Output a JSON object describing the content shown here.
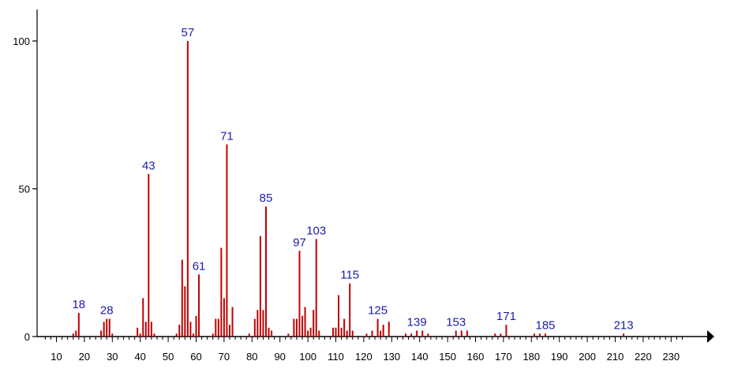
{
  "colors": {
    "bar": "#c00000",
    "peak_label": "#1c1ca8",
    "axis": "#000000"
  },
  "chart_data": {
    "type": "bar",
    "title": "",
    "xlabel": "",
    "ylabel": "",
    "xlim": [
      5,
      235
    ],
    "ylim": [
      0,
      100
    ],
    "x_ticks": [
      "10",
      "20",
      "30",
      "40",
      "50",
      "60",
      "70",
      "80",
      "90",
      "100",
      "110",
      "120",
      "130",
      "140",
      "150",
      "160",
      "170",
      "180",
      "190",
      "200",
      "210",
      "220",
      "230"
    ],
    "y_ticks": [
      "0",
      "50",
      "100"
    ],
    "peaks": [
      {
        "x": 16,
        "y": 1
      },
      {
        "x": 17,
        "y": 2
      },
      {
        "x": 18,
        "y": 8
      },
      {
        "x": 26,
        "y": 2
      },
      {
        "x": 27,
        "y": 5
      },
      {
        "x": 28,
        "y": 6
      },
      {
        "x": 29,
        "y": 6
      },
      {
        "x": 30,
        "y": 1
      },
      {
        "x": 39,
        "y": 3
      },
      {
        "x": 40,
        "y": 1
      },
      {
        "x": 41,
        "y": 13
      },
      {
        "x": 42,
        "y": 5
      },
      {
        "x": 43,
        "y": 55
      },
      {
        "x": 44,
        "y": 5
      },
      {
        "x": 45,
        "y": 1
      },
      {
        "x": 53,
        "y": 1
      },
      {
        "x": 54,
        "y": 4
      },
      {
        "x": 55,
        "y": 26
      },
      {
        "x": 56,
        "y": 17
      },
      {
        "x": 57,
        "y": 100
      },
      {
        "x": 58,
        "y": 5
      },
      {
        "x": 59,
        "y": 1
      },
      {
        "x": 60,
        "y": 7
      },
      {
        "x": 61,
        "y": 21
      },
      {
        "x": 66,
        "y": 1
      },
      {
        "x": 67,
        "y": 6
      },
      {
        "x": 68,
        "y": 6
      },
      {
        "x": 69,
        "y": 30
      },
      {
        "x": 70,
        "y": 13
      },
      {
        "x": 71,
        "y": 65
      },
      {
        "x": 72,
        "y": 4
      },
      {
        "x": 73,
        "y": 10
      },
      {
        "x": 79,
        "y": 1
      },
      {
        "x": 81,
        "y": 6
      },
      {
        "x": 82,
        "y": 9
      },
      {
        "x": 83,
        "y": 34
      },
      {
        "x": 84,
        "y": 9
      },
      {
        "x": 85,
        "y": 44
      },
      {
        "x": 86,
        "y": 3
      },
      {
        "x": 87,
        "y": 2
      },
      {
        "x": 93,
        "y": 1
      },
      {
        "x": 95,
        "y": 6
      },
      {
        "x": 96,
        "y": 6
      },
      {
        "x": 97,
        "y": 29
      },
      {
        "x": 98,
        "y": 7
      },
      {
        "x": 99,
        "y": 10
      },
      {
        "x": 100,
        "y": 2
      },
      {
        "x": 101,
        "y": 3
      },
      {
        "x": 102,
        "y": 9
      },
      {
        "x": 103,
        "y": 33
      },
      {
        "x": 104,
        "y": 2
      },
      {
        "x": 109,
        "y": 3
      },
      {
        "x": 110,
        "y": 3
      },
      {
        "x": 111,
        "y": 14
      },
      {
        "x": 112,
        "y": 3
      },
      {
        "x": 113,
        "y": 6
      },
      {
        "x": 114,
        "y": 2
      },
      {
        "x": 115,
        "y": 18
      },
      {
        "x": 116,
        "y": 2
      },
      {
        "x": 121,
        "y": 1
      },
      {
        "x": 123,
        "y": 2
      },
      {
        "x": 125,
        "y": 6
      },
      {
        "x": 126,
        "y": 2
      },
      {
        "x": 127,
        "y": 4
      },
      {
        "x": 129,
        "y": 5
      },
      {
        "x": 135,
        "y": 1
      },
      {
        "x": 137,
        "y": 1
      },
      {
        "x": 139,
        "y": 2
      },
      {
        "x": 141,
        "y": 2
      },
      {
        "x": 143,
        "y": 1
      },
      {
        "x": 153,
        "y": 2
      },
      {
        "x": 155,
        "y": 2
      },
      {
        "x": 157,
        "y": 2
      },
      {
        "x": 167,
        "y": 1
      },
      {
        "x": 169,
        "y": 1
      },
      {
        "x": 171,
        "y": 4
      },
      {
        "x": 181,
        "y": 1
      },
      {
        "x": 183,
        "y": 1
      },
      {
        "x": 185,
        "y": 1
      },
      {
        "x": 213,
        "y": 1
      }
    ],
    "peak_labels": [
      {
        "x": 18,
        "y": 8,
        "text": "18"
      },
      {
        "x": 28,
        "y": 6,
        "text": "28"
      },
      {
        "x": 43,
        "y": 55,
        "text": "43"
      },
      {
        "x": 57,
        "y": 100,
        "text": "57"
      },
      {
        "x": 61,
        "y": 21,
        "text": "61"
      },
      {
        "x": 71,
        "y": 65,
        "text": "71"
      },
      {
        "x": 85,
        "y": 44,
        "text": "85"
      },
      {
        "x": 97,
        "y": 29,
        "text": "97"
      },
      {
        "x": 103,
        "y": 33,
        "text": "103"
      },
      {
        "x": 115,
        "y": 18,
        "text": "115"
      },
      {
        "x": 125,
        "y": 6,
        "text": "125"
      },
      {
        "x": 139,
        "y": 2,
        "text": "139"
      },
      {
        "x": 153,
        "y": 2,
        "text": "153"
      },
      {
        "x": 171,
        "y": 4,
        "text": "171"
      },
      {
        "x": 185,
        "y": 1,
        "text": "185"
      },
      {
        "x": 213,
        "y": 1,
        "text": "213"
      }
    ]
  }
}
